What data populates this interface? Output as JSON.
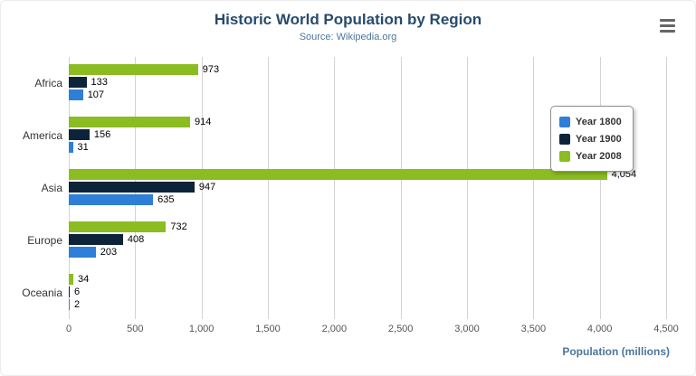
{
  "header": {
    "title": "Historic World Population by Region",
    "subtitle": "Source: Wikipedia.org",
    "menu_icon": "hamburger-menu"
  },
  "chart_data": {
    "type": "bar",
    "orientation": "horizontal",
    "title": "Historic World Population by Region",
    "subtitle": "Source: Wikipedia.org",
    "categories": [
      "Africa",
      "America",
      "Asia",
      "Europe",
      "Oceania"
    ],
    "series": [
      {
        "name": "Year 1800",
        "color": "#2f7ed8",
        "values": [
          107,
          31,
          635,
          203,
          2
        ]
      },
      {
        "name": "Year 1900",
        "color": "#0d233a",
        "values": [
          133,
          156,
          947,
          408,
          6
        ]
      },
      {
        "name": "Year 2008",
        "color": "#8bbc21",
        "values": [
          973,
          914,
          4054,
          732,
          34
        ]
      }
    ],
    "bar_display_order": [
      "Year 2008",
      "Year 1900",
      "Year 1800"
    ],
    "data_labels": true,
    "xlabel": "Population (millions)",
    "xlim": [
      0,
      4500
    ],
    "x_ticks": {
      "values": [
        0,
        500,
        1000,
        1500,
        2000,
        2500,
        3000,
        3500,
        4000,
        4500
      ],
      "labels": [
        "0",
        "500",
        "1,000",
        "1,500",
        "2,000",
        "2,500",
        "3,000",
        "3,500",
        "4,000",
        "4,500"
      ]
    },
    "grid": true,
    "legend_position": "right",
    "colors": {
      "title": "#274b6d",
      "subtitle": "#4d759e",
      "axis_title": "#4d759e",
      "gridline": "#d3d3d3"
    }
  }
}
